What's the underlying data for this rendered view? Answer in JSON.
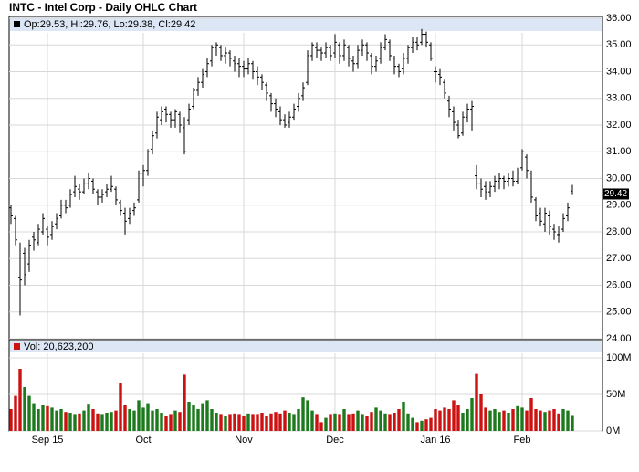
{
  "chart_data": {
    "type": "ohlc",
    "title": "INTC - Intel Corp - Daily OHLC Chart",
    "legend": "Op:29.53, Hi:29.76, Lo:29.38, Cl:29.42",
    "volume_legend": "Vol: 20,623,200",
    "last_price_label": "29.42",
    "categories": [
      null,
      null,
      null,
      null,
      null,
      null,
      null,
      null,
      "Sep 15",
      null,
      null,
      null,
      null,
      null,
      null,
      null,
      null,
      null,
      null,
      null,
      null,
      null,
      null,
      null,
      null,
      null,
      null,
      null,
      null,
      "Oct",
      null,
      null,
      null,
      null,
      null,
      null,
      null,
      null,
      null,
      null,
      null,
      null,
      null,
      null,
      null,
      null,
      null,
      null,
      null,
      null,
      null,
      "Nov",
      null,
      null,
      null,
      null,
      null,
      null,
      null,
      null,
      null,
      null,
      null,
      null,
      null,
      null,
      null,
      null,
      null,
      null,
      null,
      "Dec",
      null,
      null,
      null,
      null,
      null,
      null,
      null,
      null,
      null,
      null,
      null,
      null,
      null,
      null,
      null,
      null,
      null,
      null,
      null,
      null,
      null,
      "Jan 16",
      null,
      null,
      null,
      null,
      null,
      null,
      null,
      null,
      null,
      null,
      null,
      null,
      null,
      null,
      null,
      null,
      null,
      null,
      "Feb",
      null,
      null,
      null,
      null,
      null,
      null,
      null,
      null,
      null,
      null,
      null
    ],
    "open": [
      28.9,
      28.5,
      26.3,
      27.2,
      26.8,
      27.8,
      27.6,
      28.0,
      28.1,
      27.9,
      28.3,
      28.6,
      29.0,
      29.0,
      29.5,
      29.6,
      29.5,
      29.8,
      29.9,
      29.5,
      29.3,
      29.5,
      29.6,
      29.6,
      29.1,
      28.7,
      28.5,
      28.8,
      29.2,
      30.2,
      30.3,
      31.1,
      31.7,
      32.2,
      32.6,
      32.4,
      32.2,
      32.4,
      31.9,
      32.2,
      32.7,
      33.3,
      33.6,
      34.0,
      34.4,
      34.9,
      34.9,
      34.6,
      34.7,
      34.4,
      34.3,
      34.2,
      34.1,
      34.3,
      34.0,
      33.8,
      33.5,
      33.1,
      32.8,
      32.5,
      32.2,
      32.1,
      32.3,
      32.7,
      33.1,
      33.6,
      34.6,
      34.9,
      34.8,
      34.7,
      34.9,
      34.7,
      35.0,
      34.6,
      34.9,
      34.4,
      34.3,
      34.8,
      35.0,
      34.6,
      34.2,
      34.5,
      34.9,
      35.1,
      34.5,
      34.2,
      34.1,
      34.5,
      34.9,
      35.1,
      35.1,
      35.4,
      35.0,
      34.0,
      33.9,
      33.6,
      32.9,
      32.5,
      32.0,
      31.7,
      32.3,
      32.6,
      30.1,
      29.8,
      29.7,
      29.5,
      29.7,
      29.9,
      30.0,
      29.9,
      30.0,
      29.9,
      30.4,
      30.8,
      30.2,
      29.2,
      28.7,
      28.3,
      28.6,
      28.1,
      27.9,
      28.1,
      28.6,
      29.53
    ],
    "high": [
      29.0,
      28.6,
      27.6,
      27.4,
      27.7,
      28.0,
      28.3,
      28.7,
      28.2,
      28.4,
      28.7,
      29.2,
      29.2,
      29.6,
      30.1,
      29.8,
      30.0,
      30.2,
      30.0,
      29.6,
      29.6,
      29.8,
      30.1,
      29.7,
      29.2,
      28.9,
      28.9,
      29.1,
      30.3,
      30.5,
      31.1,
      31.8,
      32.5,
      32.7,
      32.7,
      32.5,
      32.6,
      32.5,
      32.3,
      32.8,
      33.4,
      33.8,
      34.1,
      34.5,
      35.0,
      35.1,
      35.0,
      34.9,
      34.8,
      34.6,
      34.5,
      34.4,
      34.5,
      34.4,
      34.2,
      33.9,
      33.6,
      33.2,
      33.0,
      32.7,
      32.4,
      32.5,
      32.8,
      33.2,
      33.6,
      34.8,
      35.1,
      35.1,
      34.9,
      35.1,
      35.0,
      35.4,
      35.1,
      35.2,
      35.0,
      34.6,
      35.0,
      35.2,
      35.1,
      34.7,
      34.6,
      35.1,
      35.4,
      35.2,
      34.6,
      34.3,
      34.7,
      35.0,
      35.3,
      35.3,
      35.6,
      35.5,
      35.1,
      34.2,
      34.1,
      33.7,
      33.1,
      32.7,
      32.2,
      32.5,
      32.8,
      32.9,
      30.5,
      30.0,
      29.9,
      29.9,
      30.1,
      30.2,
      30.1,
      30.2,
      30.3,
      30.4,
      31.1,
      30.9,
      30.3,
      29.3,
      28.9,
      28.9,
      28.8,
      28.3,
      28.2,
      28.7,
      29.1,
      29.76
    ],
    "low": [
      28.3,
      27.5,
      24.87,
      26.0,
      26.5,
      27.3,
      27.5,
      27.9,
      27.5,
      27.7,
      28.1,
      28.5,
      28.7,
      28.9,
      29.3,
      29.2,
      29.4,
      29.6,
      29.4,
      29.0,
      29.1,
      29.3,
      29.5,
      29.0,
      28.6,
      27.9,
      28.3,
      28.6,
      29.1,
      29.7,
      30.1,
      30.9,
      31.5,
      32.0,
      32.1,
      31.9,
      31.9,
      31.7,
      30.9,
      32.0,
      32.6,
      33.1,
      33.4,
      33.8,
      34.2,
      34.6,
      34.4,
      34.3,
      34.2,
      34.0,
      33.8,
      33.8,
      33.9,
      33.7,
      33.5,
      33.3,
      32.9,
      32.5,
      32.3,
      32.0,
      31.9,
      31.9,
      32.2,
      32.5,
      32.9,
      33.5,
      34.4,
      34.5,
      34.4,
      34.5,
      34.4,
      34.5,
      34.3,
      34.4,
      34.2,
      34.0,
      34.1,
      34.6,
      34.4,
      33.9,
      34.0,
      34.3,
      34.8,
      34.4,
      33.9,
      33.8,
      33.9,
      34.3,
      34.7,
      34.8,
      35.0,
      34.9,
      34.4,
      33.6,
      33.5,
      33.0,
      32.3,
      31.8,
      31.5,
      31.6,
      32.1,
      31.8,
      29.6,
      29.3,
      29.2,
      29.3,
      29.5,
      29.6,
      29.6,
      29.7,
      29.7,
      29.8,
      30.3,
      30.0,
      29.1,
      28.4,
      28.2,
      28.0,
      27.9,
      27.7,
      27.6,
      28.0,
      28.4,
      29.38
    ],
    "close": [
      28.6,
      27.7,
      26.2,
      26.4,
      27.5,
      27.7,
      28.1,
      28.5,
      27.8,
      28.2,
      28.5,
      29.0,
      28.9,
      29.4,
      29.7,
      29.5,
      29.8,
      30.0,
      29.6,
      29.3,
      29.4,
      29.6,
      29.7,
      29.2,
      28.8,
      28.4,
      28.7,
      28.9,
      30.2,
      30.3,
      31.0,
      31.6,
      32.3,
      32.5,
      32.4,
      32.2,
      32.5,
      32.0,
      31.0,
      32.6,
      33.3,
      33.6,
      33.9,
      34.3,
      34.9,
      35.0,
      34.6,
      34.7,
      34.5,
      34.3,
      34.2,
      34.1,
      34.3,
      34.0,
      33.8,
      33.6,
      33.2,
      32.8,
      32.6,
      32.2,
      32.0,
      32.3,
      32.6,
      33.0,
      33.4,
      34.6,
      35.0,
      34.8,
      34.7,
      34.9,
      34.6,
      35.1,
      34.6,
      35.0,
      34.5,
      34.3,
      34.8,
      35.0,
      34.7,
      34.2,
      34.4,
      34.9,
      35.2,
      34.6,
      34.2,
      34.0,
      34.5,
      34.9,
      35.1,
      35.0,
      35.4,
      35.1,
      34.5,
      34.0,
      33.8,
      33.2,
      32.6,
      32.1,
      31.6,
      32.3,
      32.6,
      32.7,
      29.8,
      29.6,
      29.5,
      29.7,
      29.9,
      30.0,
      29.9,
      30.0,
      29.9,
      30.2,
      31.0,
      30.3,
      29.3,
      28.6,
      28.4,
      28.7,
      28.2,
      28.0,
      27.9,
      28.5,
      28.9,
      29.42
    ],
    "volume": [
      30,
      48,
      85,
      60,
      48,
      38,
      30,
      35,
      34,
      32,
      28,
      30,
      26,
      25,
      22,
      24,
      28,
      36,
      30,
      24,
      22,
      25,
      26,
      28,
      65,
      35,
      30,
      28,
      42,
      32,
      38,
      28,
      30,
      25,
      20,
      22,
      28,
      26,
      77,
      40,
      35,
      30,
      38,
      42,
      30,
      25,
      22,
      20,
      22,
      24,
      22,
      20,
      24,
      22,
      22,
      25,
      20,
      24,
      26,
      24,
      28,
      25,
      22,
      30,
      46,
      42,
      28,
      22,
      12,
      18,
      22,
      24,
      22,
      30,
      22,
      24,
      28,
      22,
      20,
      26,
      32,
      28,
      24,
      22,
      25,
      30,
      40,
      24,
      18,
      12,
      14,
      16,
      18,
      30,
      28,
      32,
      30,
      42,
      35,
      25,
      30,
      45,
      78,
      50,
      32,
      28,
      30,
      26,
      28,
      25,
      30,
      34,
      32,
      28,
      45,
      30,
      28,
      26,
      28,
      30,
      24,
      30,
      28,
      20.6232
    ],
    "ylim": [
      24,
      36
    ],
    "yticks": [
      {
        "value": 24,
        "label": "24.00"
      },
      {
        "value": 25,
        "label": "25.00"
      },
      {
        "value": 26,
        "label": "26.00"
      },
      {
        "value": 27,
        "label": "27.00"
      },
      {
        "value": 28,
        "label": "28.00"
      },
      {
        "value": 29,
        "label": "29.00"
      },
      {
        "value": 30,
        "label": "30.00"
      },
      {
        "value": 31,
        "label": "31.00"
      },
      {
        "value": 32,
        "label": "32.00"
      },
      {
        "value": 33,
        "label": "33.00"
      },
      {
        "value": 34,
        "label": "34.00"
      },
      {
        "value": 35,
        "label": "35.00"
      },
      {
        "value": 36,
        "label": "36.00"
      }
    ],
    "volume_ylim": [
      0,
      100
    ],
    "volume_yticks": [
      {
        "value": 0,
        "label": "0M"
      },
      {
        "value": 50,
        "label": "50M"
      },
      {
        "value": 100,
        "label": "100M"
      }
    ],
    "grid": true,
    "bar_color": "#000000",
    "up_color": "#1c7a1c",
    "down_color": "#cc1111",
    "legend_band_color": "#dce6f4"
  }
}
